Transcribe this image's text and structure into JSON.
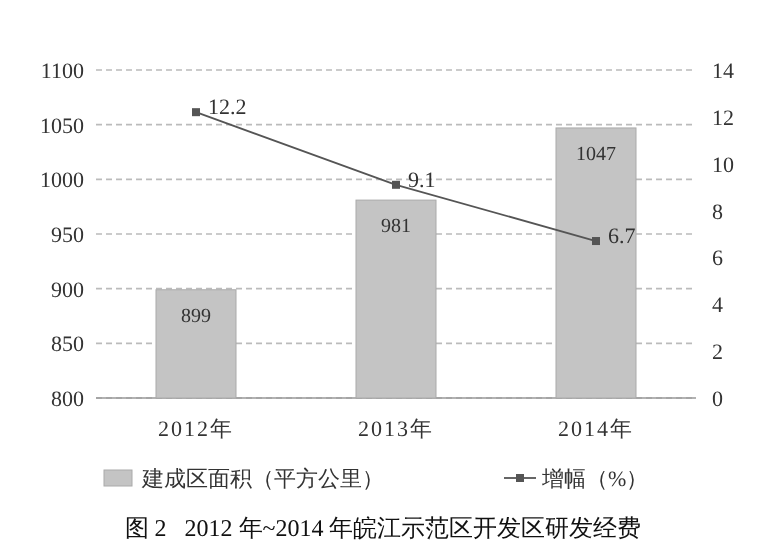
{
  "chart_data": {
    "type": "bar",
    "title": "图 2   2012 年~2014 年皖江示范区开发区研发经费",
    "categories": [
      "2012年",
      "2013年",
      "2014年"
    ],
    "series": [
      {
        "name": "建成区面积（平方公里）",
        "color": "#c4c4c4",
        "values": [
          899,
          981,
          1047
        ]
      },
      {
        "name": "增幅（%）",
        "type": "line",
        "axis": "y2",
        "color": "#555555",
        "marker": "square",
        "values": [
          12.2,
          9.1,
          6.7
        ]
      }
    ],
    "ylim": [
      800,
      1100
    ],
    "yticks": [
      800,
      850,
      900,
      950,
      1000,
      1050,
      1100
    ],
    "y2lim": [
      0,
      14
    ],
    "y2ticks": [
      0,
      2,
      4,
      6,
      8,
      10,
      12,
      14
    ],
    "grid": "y",
    "legend": "bottom",
    "data_labels": true
  }
}
